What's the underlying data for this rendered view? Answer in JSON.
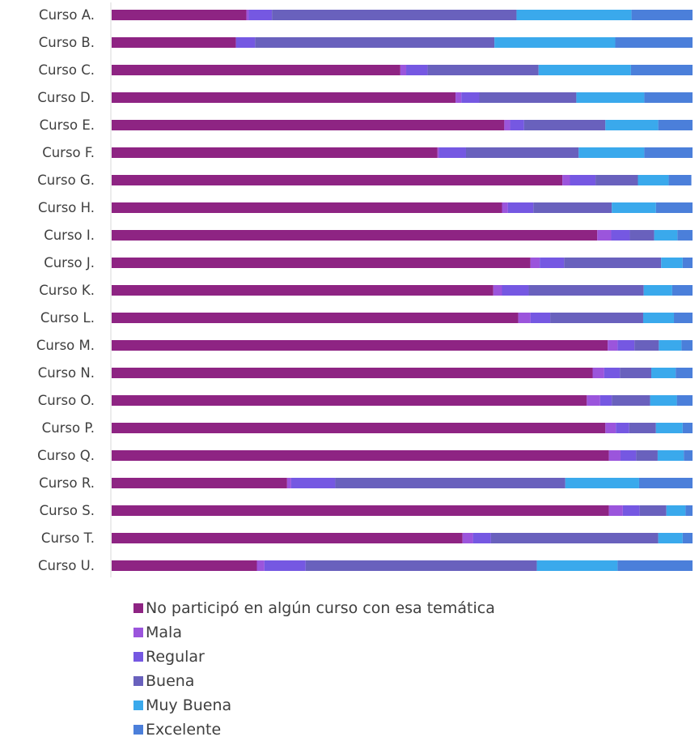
{
  "chart_data": {
    "type": "bar",
    "orientation": "horizontal",
    "stacked": true,
    "normalized": true,
    "categories": [
      "Curso A.",
      "Curso B.",
      "Curso C.",
      "Curso D.",
      "Curso E.",
      "Curso F.",
      "Curso G.",
      "Curso H.",
      "Curso I.",
      "Curso J.",
      "Curso K.",
      "Curso L.",
      "Curso M.",
      "Curso N.",
      "Curso O.",
      "Curso P.",
      "Curso Q.",
      "Curso R.",
      "Curso S.",
      "Curso T.",
      "Curso U."
    ],
    "series": [
      {
        "name": "No participó en algún curso con esa temática",
        "color": "#8e2483",
        "values": [
          23.2,
          21.4,
          49.7,
          59.2,
          67.6,
          56.1,
          77.6,
          67.2,
          83.6,
          72.1,
          65.7,
          70.0,
          85.4,
          82.8,
          81.8,
          85.0,
          85.6,
          30.2,
          85.6,
          60.4,
          25.0
        ]
      },
      {
        "name": "Mala",
        "color": "#9b55dc",
        "values": [
          0.4,
          0.0,
          1.0,
          1.0,
          1.0,
          0.3,
          1.3,
          1.0,
          2.4,
          1.6,
          1.5,
          2.1,
          1.7,
          2.0,
          2.3,
          1.8,
          2.0,
          0.7,
          2.4,
          1.8,
          1.3
        ]
      },
      {
        "name": "Regular",
        "color": "#7558e2",
        "values": [
          4.0,
          3.3,
          3.7,
          3.1,
          2.4,
          4.6,
          4.4,
          4.4,
          3.2,
          4.2,
          4.6,
          3.4,
          2.9,
          2.7,
          2.0,
          2.3,
          2.7,
          7.6,
          2.9,
          3.1,
          7.1
        ]
      },
      {
        "name": "Buena",
        "color": "#6961bd",
        "values": [
          42.1,
          41.2,
          19.1,
          16.7,
          14.0,
          19.4,
          7.3,
          13.5,
          4.2,
          16.7,
          19.8,
          16.0,
          4.2,
          5.4,
          6.6,
          4.6,
          3.7,
          39.6,
          4.6,
          28.8,
          39.8
        ]
      },
      {
        "name": "Muy Buena",
        "color": "#3aa9ec",
        "values": [
          19.8,
          20.8,
          15.9,
          11.7,
          9.1,
          11.3,
          5.3,
          7.6,
          4.0,
          3.7,
          4.9,
          5.3,
          3.9,
          4.2,
          4.6,
          4.6,
          4.5,
          12.7,
          3.3,
          4.2,
          13.9
        ]
      },
      {
        "name": "Excelente",
        "color": "#4b7fda",
        "values": [
          10.5,
          13.3,
          10.6,
          8.3,
          5.9,
          8.3,
          3.9,
          6.3,
          2.6,
          1.7,
          3.5,
          3.2,
          1.9,
          2.9,
          2.7,
          1.7,
          1.5,
          9.2,
          1.2,
          1.7,
          12.9
        ]
      }
    ],
    "xlim": [
      0,
      100
    ],
    "grid": false,
    "legend_position": "bottom"
  }
}
